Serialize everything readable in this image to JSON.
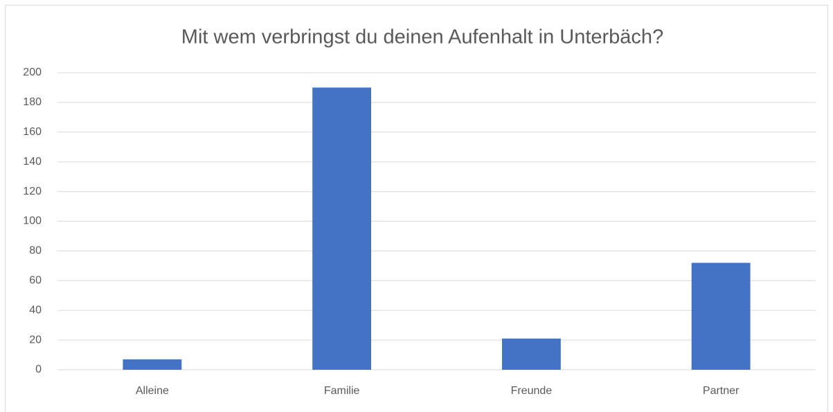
{
  "chart_data": {
    "type": "bar",
    "title": "Mit wem verbringst du deinen Aufenhalt in Unterbäch?",
    "categories": [
      "Alleine",
      "Familie",
      "Freunde",
      "Partner"
    ],
    "values": [
      7,
      190,
      21,
      72
    ],
    "color": "#4472c4",
    "ylim": [
      0,
      200
    ],
    "yticks": [
      0,
      20,
      40,
      60,
      80,
      100,
      120,
      140,
      160,
      180,
      200
    ],
    "grid": true
  }
}
